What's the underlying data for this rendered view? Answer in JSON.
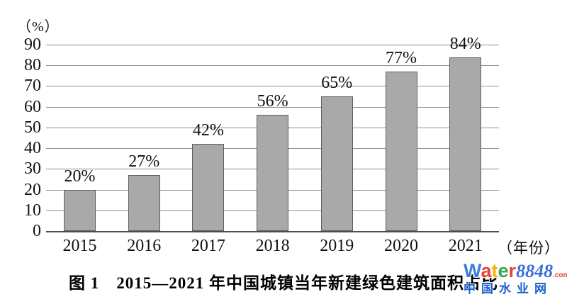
{
  "chart_data": {
    "type": "bar",
    "title": "图 1　2015—2021 年中国城镇当年新建绿色建筑面积占比",
    "categories": [
      "2015",
      "2016",
      "2017",
      "2018",
      "2019",
      "2020",
      "2021"
    ],
    "values": [
      20,
      27,
      42,
      56,
      65,
      77,
      84
    ],
    "bar_value_labels": [
      "20%",
      "27%",
      "42%",
      "56%",
      "65%",
      "77%",
      "84%"
    ],
    "y_unit_label": "（%）",
    "x_unit_label": "（年份）",
    "ylim": [
      0,
      90
    ],
    "yticks": [
      0,
      10,
      20,
      30,
      40,
      50,
      60,
      70,
      80,
      90
    ],
    "grid": "horizontal",
    "legend": "none",
    "bar_color": "#a9a9a9",
    "bar_border_color": "#5e5e5e",
    "gridline_color": "#8f8f8f"
  },
  "caption": "图 1　2015—2021 年中国城镇当年新建绿色建筑面积占比",
  "watermark": {
    "brand_letters": [
      {
        "ch": "W",
        "color": "#3d7de0"
      },
      {
        "ch": "a",
        "color": "#e8403a"
      },
      {
        "ch": "t",
        "color": "#f4b400"
      },
      {
        "ch": "e",
        "color": "#3aa654"
      },
      {
        "ch": "r",
        "color": "#e8403a"
      }
    ],
    "brand_number": "8848",
    "brand_number_color": "#3a6fd8",
    "brand_tld": ".com",
    "brand_tld_color": "#e53e30",
    "site_name": "中国水业网",
    "site_name_color": "#1a5fd0"
  }
}
